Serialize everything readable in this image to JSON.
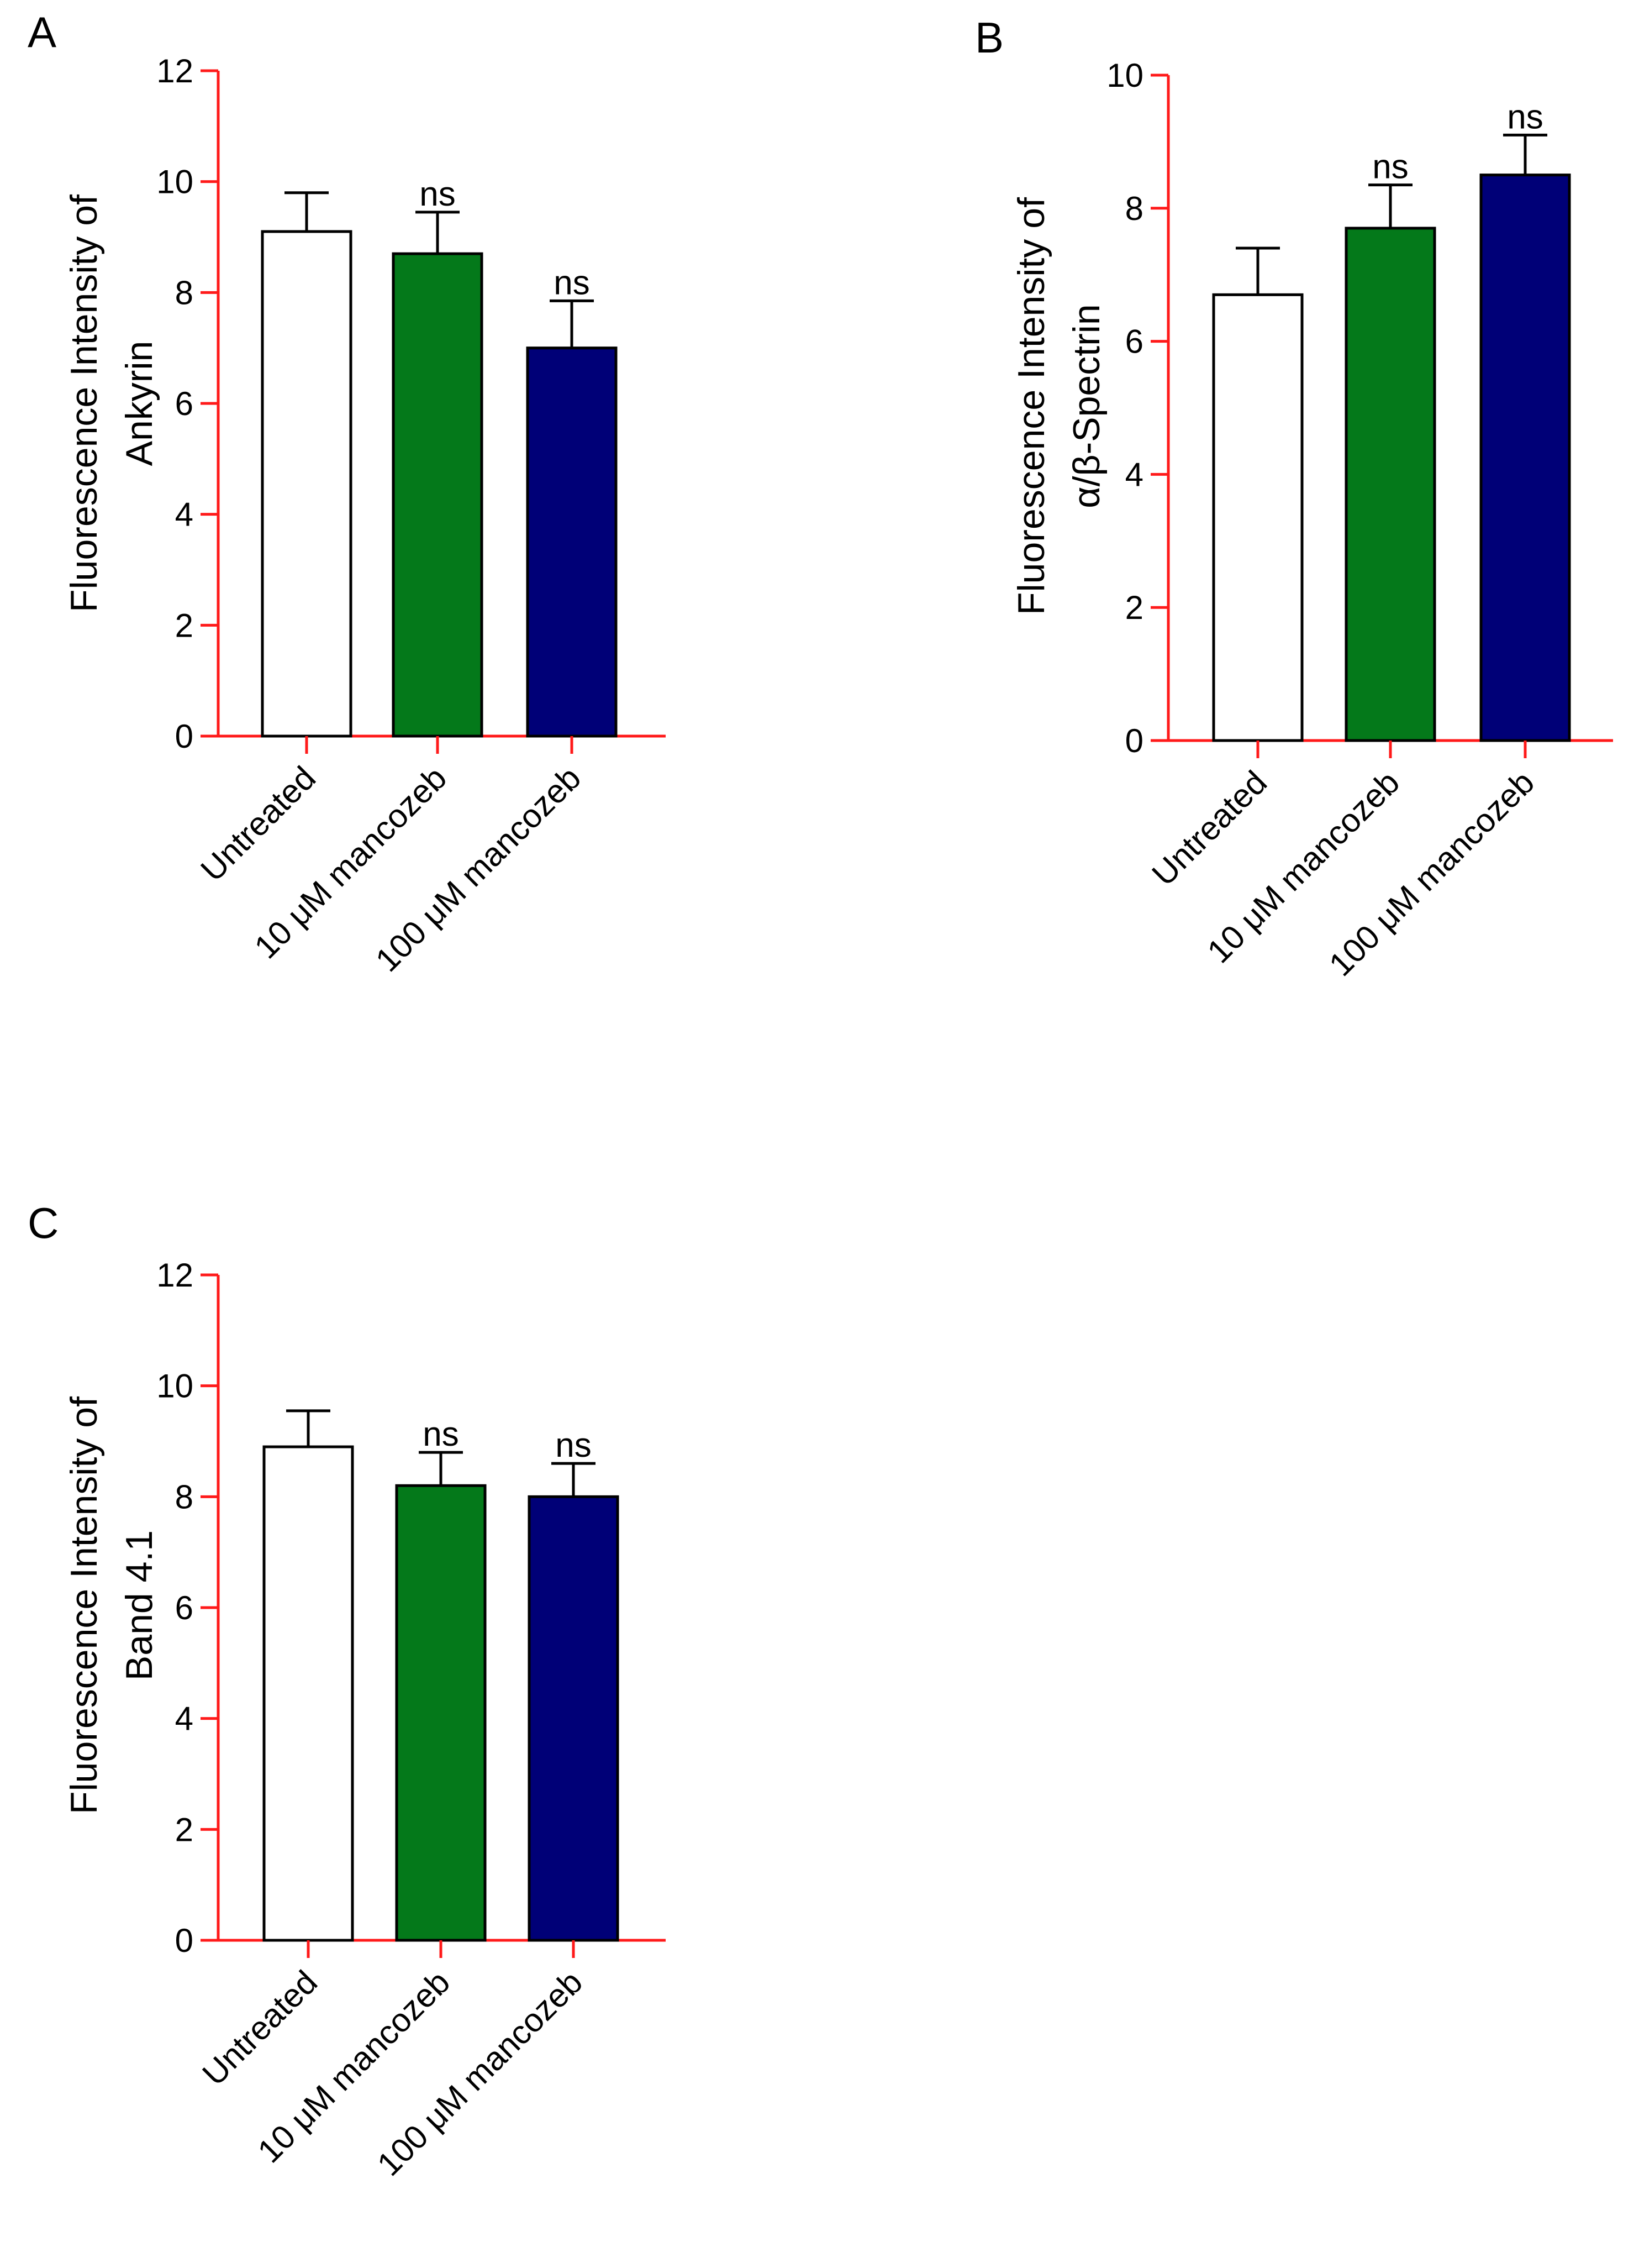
{
  "colors": {
    "axis": "#ff1a1a",
    "bar_edge": "#000000",
    "untreated": "#ffffff",
    "mancozeb_10": "#04791a",
    "mancozeb_100": "#000077"
  },
  "chart_data": [
    {
      "type": "bar",
      "panel": "A",
      "ylabel": [
        "Fluorescence Intensity of",
        "Ankyrin"
      ],
      "xlabel": "",
      "ylim": [
        0,
        12
      ],
      "yticks": [
        "0",
        "2",
        "4",
        "6",
        "8",
        "10",
        "12"
      ],
      "grid": false,
      "categories": [
        "Untreated",
        "10 μM mancozeb",
        "100 μM mancozeb"
      ],
      "values": [
        9.1,
        8.7,
        7.0
      ],
      "errors": [
        0.7,
        0.75,
        0.85
      ],
      "annotations": [
        "",
        "ns",
        "ns"
      ]
    },
    {
      "type": "bar",
      "panel": "B",
      "ylabel": [
        "Fluorescence Intensity of",
        "α/β-Spectrin"
      ],
      "xlabel": "",
      "ylim": [
        0,
        10
      ],
      "yticks": [
        "0",
        "2",
        "4",
        "6",
        "8",
        "10"
      ],
      "grid": false,
      "categories": [
        "Untreated",
        "10 μM mancozeb",
        "100 μM mancozeb"
      ],
      "values": [
        6.7,
        7.7,
        8.5
      ],
      "errors": [
        0.7,
        0.65,
        0.6
      ],
      "annotations": [
        "",
        "ns",
        "ns"
      ]
    },
    {
      "type": "bar",
      "panel": "C",
      "ylabel": [
        "Fluorescence Intensity of",
        "Band 4.1"
      ],
      "xlabel": "",
      "ylim": [
        0,
        12
      ],
      "yticks": [
        "0",
        "2",
        "4",
        "6",
        "8",
        "10",
        "12"
      ],
      "grid": false,
      "categories": [
        "Untreated",
        "10 μM mancozeb",
        "100 μM mancozeb"
      ],
      "values": [
        8.9,
        8.2,
        8.0
      ],
      "errors": [
        0.65,
        0.6,
        0.6
      ],
      "annotations": [
        "",
        "ns",
        "ns"
      ]
    }
  ]
}
